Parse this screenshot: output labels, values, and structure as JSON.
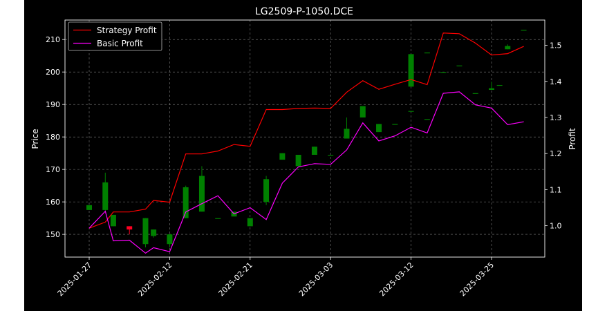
{
  "chart_data": {
    "type": "candlestick",
    "title": "LG2509-P-1050.DCE",
    "xlabel": "",
    "ylabel": "Price",
    "y2label": "Profit",
    "ylim": [
      143,
      216
    ],
    "y2lim": [
      0.913,
      1.57
    ],
    "yticks": [
      150,
      160,
      170,
      180,
      190,
      200,
      210
    ],
    "y2ticks": [
      "1.0",
      "1.1",
      "1.2",
      "1.3",
      "1.4",
      "1.5"
    ],
    "y2tick_values": [
      1.0,
      1.1,
      1.2,
      1.3,
      1.4,
      1.5
    ],
    "xtick_labels": [
      "2025-01-27",
      "2025-02-12",
      "2025-02-21",
      "2025-03-03",
      "2025-03-12",
      "2025-03-25"
    ],
    "xtick_index": [
      0,
      10,
      20,
      30,
      40,
      50
    ],
    "grid": true,
    "legend": {
      "placement": "top-left",
      "entries": [
        "Strategy Profit",
        "Basic Profit"
      ]
    },
    "colors": {
      "background": "#000000",
      "axes": "#ffffff",
      "up": "#008000",
      "down": "#ff0022",
      "strategy": "#ff0000",
      "basic": "#ff00ff",
      "grid": "#808080"
    },
    "candles": [
      {
        "o": 157.5,
        "h": 159.0,
        "l": 157.5,
        "c": 159.0
      },
      {
        "o": 157.5,
        "h": 169.0,
        "l": 157.0,
        "c": 166.0
      },
      {
        "o": 152.5,
        "h": 156.0,
        "l": 152.5,
        "c": 156.0
      },
      {
        "o": 152.5,
        "h": 152.5,
        "l": 150.0,
        "c": 151.5
      },
      {
        "o": 147.0,
        "h": 155.0,
        "l": 146.0,
        "c": 155.0
      },
      {
        "o": 149.5,
        "h": 151.5,
        "l": 149.0,
        "c": 151.5
      },
      {
        "o": 147.0,
        "h": 150.0,
        "l": 146.0,
        "c": 150.0
      },
      {
        "o": 155.0,
        "h": 165.0,
        "l": 155.0,
        "c": 164.5
      },
      {
        "o": 157.0,
        "h": 171.0,
        "l": 157.0,
        "c": 168.0
      },
      {
        "o": 155.0,
        "h": 155.0,
        "l": 155.0,
        "c": 155.0
      },
      {
        "o": 155.5,
        "h": 157.0,
        "l": 155.5,
        "c": 157.0
      },
      {
        "o": 152.5,
        "h": 155.0,
        "l": 152.5,
        "c": 155.0
      },
      {
        "o": 160.0,
        "h": 168.0,
        "l": 159.0,
        "c": 167.0
      },
      {
        "o": 173.0,
        "h": 175.0,
        "l": 173.0,
        "c": 175.0
      },
      {
        "o": 171.0,
        "h": 174.5,
        "l": 171.0,
        "c": 174.5
      },
      {
        "o": 174.5,
        "h": 177.0,
        "l": 174.5,
        "c": 177.0
      },
      {
        "o": 174.5,
        "h": 174.5,
        "l": 174.5,
        "c": 174.5
      },
      {
        "o": 179.5,
        "h": 186.0,
        "l": 179.5,
        "c": 182.5
      },
      {
        "o": 186.0,
        "h": 189.5,
        "l": 186.0,
        "c": 189.5
      },
      {
        "o": 181.5,
        "h": 184.0,
        "l": 181.5,
        "c": 184.0
      },
      {
        "o": 184.0,
        "h": 184.0,
        "l": 184.0,
        "c": 184.0
      },
      {
        "o": 188.0,
        "h": 188.0,
        "l": 188.0,
        "c": 188.0
      },
      {
        "o": 185.5,
        "h": 185.5,
        "l": 185.5,
        "c": 185.5
      },
      {
        "o": 195.5,
        "h": 205.5,
        "l": 195.5,
        "c": 205.5
      },
      {
        "o": 206.0,
        "h": 206.0,
        "l": 206.0,
        "c": 206.0
      },
      {
        "o": 200.0,
        "h": 200.0,
        "l": 200.0,
        "c": 200.0
      },
      {
        "o": 202.0,
        "h": 202.0,
        "l": 202.0,
        "c": 202.0
      },
      {
        "o": 193.5,
        "h": 193.5,
        "l": 193.5,
        "c": 193.5
      },
      {
        "o": 194.5,
        "h": 197.0,
        "l": 194.5,
        "c": 195.0
      },
      {
        "o": 196.0,
        "h": 196.0,
        "l": 196.0,
        "c": 196.0
      },
      {
        "o": 207.0,
        "h": 208.5,
        "l": 207.0,
        "c": 208.0
      },
      {
        "o": 213.0,
        "h": 213.0,
        "l": 213.0,
        "c": 213.0
      }
    ],
    "candle_index": [
      0,
      2,
      3,
      5,
      7,
      8,
      10,
      12,
      14,
      16,
      18,
      20,
      22,
      24,
      26,
      28,
      30,
      32,
      34,
      36,
      38,
      40,
      42,
      40,
      42,
      44,
      46,
      48,
      50,
      51,
      52,
      54
    ],
    "series": [
      {
        "name": "Strategy Profit",
        "x": [
          0,
          2,
          3,
          5,
          7,
          8,
          10,
          12,
          14,
          16,
          18,
          20,
          22,
          24,
          26,
          28,
          30,
          32,
          34,
          36,
          38,
          40,
          42,
          44,
          46,
          48,
          50,
          52,
          54
        ],
        "values": [
          0.993,
          1.01,
          1.038,
          1.038,
          1.046,
          1.07,
          1.065,
          1.199,
          1.199,
          1.207,
          1.225,
          1.22,
          1.322,
          1.322,
          1.325,
          1.326,
          1.325,
          1.37,
          1.402,
          1.378,
          1.392,
          1.405,
          1.391,
          1.534,
          1.532,
          1.506,
          1.473,
          1.477,
          1.497
        ]
      },
      {
        "name": "Basic Profit",
        "x": [
          0,
          2,
          3,
          5,
          7,
          8,
          10,
          12,
          14,
          16,
          18,
          20,
          22,
          24,
          26,
          28,
          30,
          32,
          34,
          36,
          38,
          40,
          42,
          44,
          46,
          48,
          50,
          52,
          54
        ],
        "values": [
          0.993,
          1.04,
          0.958,
          0.96,
          0.924,
          0.939,
          0.928,
          1.038,
          1.061,
          1.083,
          1.033,
          1.05,
          1.017,
          1.118,
          1.163,
          1.172,
          1.17,
          1.21,
          1.285,
          1.235,
          1.249,
          1.273,
          1.257,
          1.367,
          1.371,
          1.335,
          1.326,
          1.28,
          1.288
        ]
      }
    ]
  }
}
